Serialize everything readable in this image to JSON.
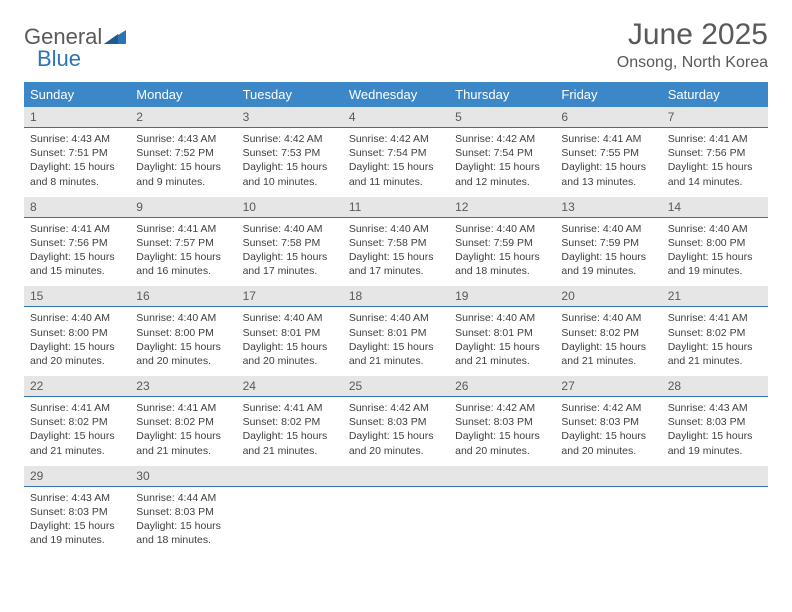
{
  "header": {
    "logo_general": "General",
    "logo_blue": "Blue",
    "title": "June 2025",
    "subtitle": "Onsong, North Korea"
  },
  "colors": {
    "header_bar": "#3b87c8",
    "week_label_bg": "#e6e6e6",
    "week_label_border": "#2e74b5",
    "text_gray": "#595959",
    "cell_text": "#404040"
  },
  "days_of_week": [
    "Sunday",
    "Monday",
    "Tuesday",
    "Wednesday",
    "Thursday",
    "Friday",
    "Saturday"
  ],
  "weeks": [
    {
      "labels": [
        "1",
        "2",
        "3",
        "4",
        "5",
        "6",
        "7"
      ],
      "cells": [
        {
          "sunrise": "Sunrise: 4:43 AM",
          "sunset": "Sunset: 7:51 PM",
          "daylight1": "Daylight: 15 hours",
          "daylight2": "and 8 minutes."
        },
        {
          "sunrise": "Sunrise: 4:43 AM",
          "sunset": "Sunset: 7:52 PM",
          "daylight1": "Daylight: 15 hours",
          "daylight2": "and 9 minutes."
        },
        {
          "sunrise": "Sunrise: 4:42 AM",
          "sunset": "Sunset: 7:53 PM",
          "daylight1": "Daylight: 15 hours",
          "daylight2": "and 10 minutes."
        },
        {
          "sunrise": "Sunrise: 4:42 AM",
          "sunset": "Sunset: 7:54 PM",
          "daylight1": "Daylight: 15 hours",
          "daylight2": "and 11 minutes."
        },
        {
          "sunrise": "Sunrise: 4:42 AM",
          "sunset": "Sunset: 7:54 PM",
          "daylight1": "Daylight: 15 hours",
          "daylight2": "and 12 minutes."
        },
        {
          "sunrise": "Sunrise: 4:41 AM",
          "sunset": "Sunset: 7:55 PM",
          "daylight1": "Daylight: 15 hours",
          "daylight2": "and 13 minutes."
        },
        {
          "sunrise": "Sunrise: 4:41 AM",
          "sunset": "Sunset: 7:56 PM",
          "daylight1": "Daylight: 15 hours",
          "daylight2": "and 14 minutes."
        }
      ]
    },
    {
      "labels": [
        "8",
        "9",
        "10",
        "11",
        "12",
        "13",
        "14"
      ],
      "cells": [
        {
          "sunrise": "Sunrise: 4:41 AM",
          "sunset": "Sunset: 7:56 PM",
          "daylight1": "Daylight: 15 hours",
          "daylight2": "and 15 minutes."
        },
        {
          "sunrise": "Sunrise: 4:41 AM",
          "sunset": "Sunset: 7:57 PM",
          "daylight1": "Daylight: 15 hours",
          "daylight2": "and 16 minutes."
        },
        {
          "sunrise": "Sunrise: 4:40 AM",
          "sunset": "Sunset: 7:58 PM",
          "daylight1": "Daylight: 15 hours",
          "daylight2": "and 17 minutes."
        },
        {
          "sunrise": "Sunrise: 4:40 AM",
          "sunset": "Sunset: 7:58 PM",
          "daylight1": "Daylight: 15 hours",
          "daylight2": "and 17 minutes."
        },
        {
          "sunrise": "Sunrise: 4:40 AM",
          "sunset": "Sunset: 7:59 PM",
          "daylight1": "Daylight: 15 hours",
          "daylight2": "and 18 minutes."
        },
        {
          "sunrise": "Sunrise: 4:40 AM",
          "sunset": "Sunset: 7:59 PM",
          "daylight1": "Daylight: 15 hours",
          "daylight2": "and 19 minutes."
        },
        {
          "sunrise": "Sunrise: 4:40 AM",
          "sunset": "Sunset: 8:00 PM",
          "daylight1": "Daylight: 15 hours",
          "daylight2": "and 19 minutes."
        }
      ]
    },
    {
      "labels": [
        "15",
        "16",
        "17",
        "18",
        "19",
        "20",
        "21"
      ],
      "cells": [
        {
          "sunrise": "Sunrise: 4:40 AM",
          "sunset": "Sunset: 8:00 PM",
          "daylight1": "Daylight: 15 hours",
          "daylight2": "and 20 minutes."
        },
        {
          "sunrise": "Sunrise: 4:40 AM",
          "sunset": "Sunset: 8:00 PM",
          "daylight1": "Daylight: 15 hours",
          "daylight2": "and 20 minutes."
        },
        {
          "sunrise": "Sunrise: 4:40 AM",
          "sunset": "Sunset: 8:01 PM",
          "daylight1": "Daylight: 15 hours",
          "daylight2": "and 20 minutes."
        },
        {
          "sunrise": "Sunrise: 4:40 AM",
          "sunset": "Sunset: 8:01 PM",
          "daylight1": "Daylight: 15 hours",
          "daylight2": "and 21 minutes."
        },
        {
          "sunrise": "Sunrise: 4:40 AM",
          "sunset": "Sunset: 8:01 PM",
          "daylight1": "Daylight: 15 hours",
          "daylight2": "and 21 minutes."
        },
        {
          "sunrise": "Sunrise: 4:40 AM",
          "sunset": "Sunset: 8:02 PM",
          "daylight1": "Daylight: 15 hours",
          "daylight2": "and 21 minutes."
        },
        {
          "sunrise": "Sunrise: 4:41 AM",
          "sunset": "Sunset: 8:02 PM",
          "daylight1": "Daylight: 15 hours",
          "daylight2": "and 21 minutes."
        }
      ]
    },
    {
      "labels": [
        "22",
        "23",
        "24",
        "25",
        "26",
        "27",
        "28"
      ],
      "cells": [
        {
          "sunrise": "Sunrise: 4:41 AM",
          "sunset": "Sunset: 8:02 PM",
          "daylight1": "Daylight: 15 hours",
          "daylight2": "and 21 minutes."
        },
        {
          "sunrise": "Sunrise: 4:41 AM",
          "sunset": "Sunset: 8:02 PM",
          "daylight1": "Daylight: 15 hours",
          "daylight2": "and 21 minutes."
        },
        {
          "sunrise": "Sunrise: 4:41 AM",
          "sunset": "Sunset: 8:02 PM",
          "daylight1": "Daylight: 15 hours",
          "daylight2": "and 21 minutes."
        },
        {
          "sunrise": "Sunrise: 4:42 AM",
          "sunset": "Sunset: 8:03 PM",
          "daylight1": "Daylight: 15 hours",
          "daylight2": "and 20 minutes."
        },
        {
          "sunrise": "Sunrise: 4:42 AM",
          "sunset": "Sunset: 8:03 PM",
          "daylight1": "Daylight: 15 hours",
          "daylight2": "and 20 minutes."
        },
        {
          "sunrise": "Sunrise: 4:42 AM",
          "sunset": "Sunset: 8:03 PM",
          "daylight1": "Daylight: 15 hours",
          "daylight2": "and 20 minutes."
        },
        {
          "sunrise": "Sunrise: 4:43 AM",
          "sunset": "Sunset: 8:03 PM",
          "daylight1": "Daylight: 15 hours",
          "daylight2": "and 19 minutes."
        }
      ]
    },
    {
      "labels": [
        "29",
        "30",
        "",
        "",
        "",
        "",
        ""
      ],
      "cells": [
        {
          "sunrise": "Sunrise: 4:43 AM",
          "sunset": "Sunset: 8:03 PM",
          "daylight1": "Daylight: 15 hours",
          "daylight2": "and 19 minutes."
        },
        {
          "sunrise": "Sunrise: 4:44 AM",
          "sunset": "Sunset: 8:03 PM",
          "daylight1": "Daylight: 15 hours",
          "daylight2": "and 18 minutes."
        },
        {
          "sunrise": "",
          "sunset": "",
          "daylight1": "",
          "daylight2": ""
        },
        {
          "sunrise": "",
          "sunset": "",
          "daylight1": "",
          "daylight2": ""
        },
        {
          "sunrise": "",
          "sunset": "",
          "daylight1": "",
          "daylight2": ""
        },
        {
          "sunrise": "",
          "sunset": "",
          "daylight1": "",
          "daylight2": ""
        },
        {
          "sunrise": "",
          "sunset": "",
          "daylight1": "",
          "daylight2": ""
        }
      ]
    }
  ]
}
